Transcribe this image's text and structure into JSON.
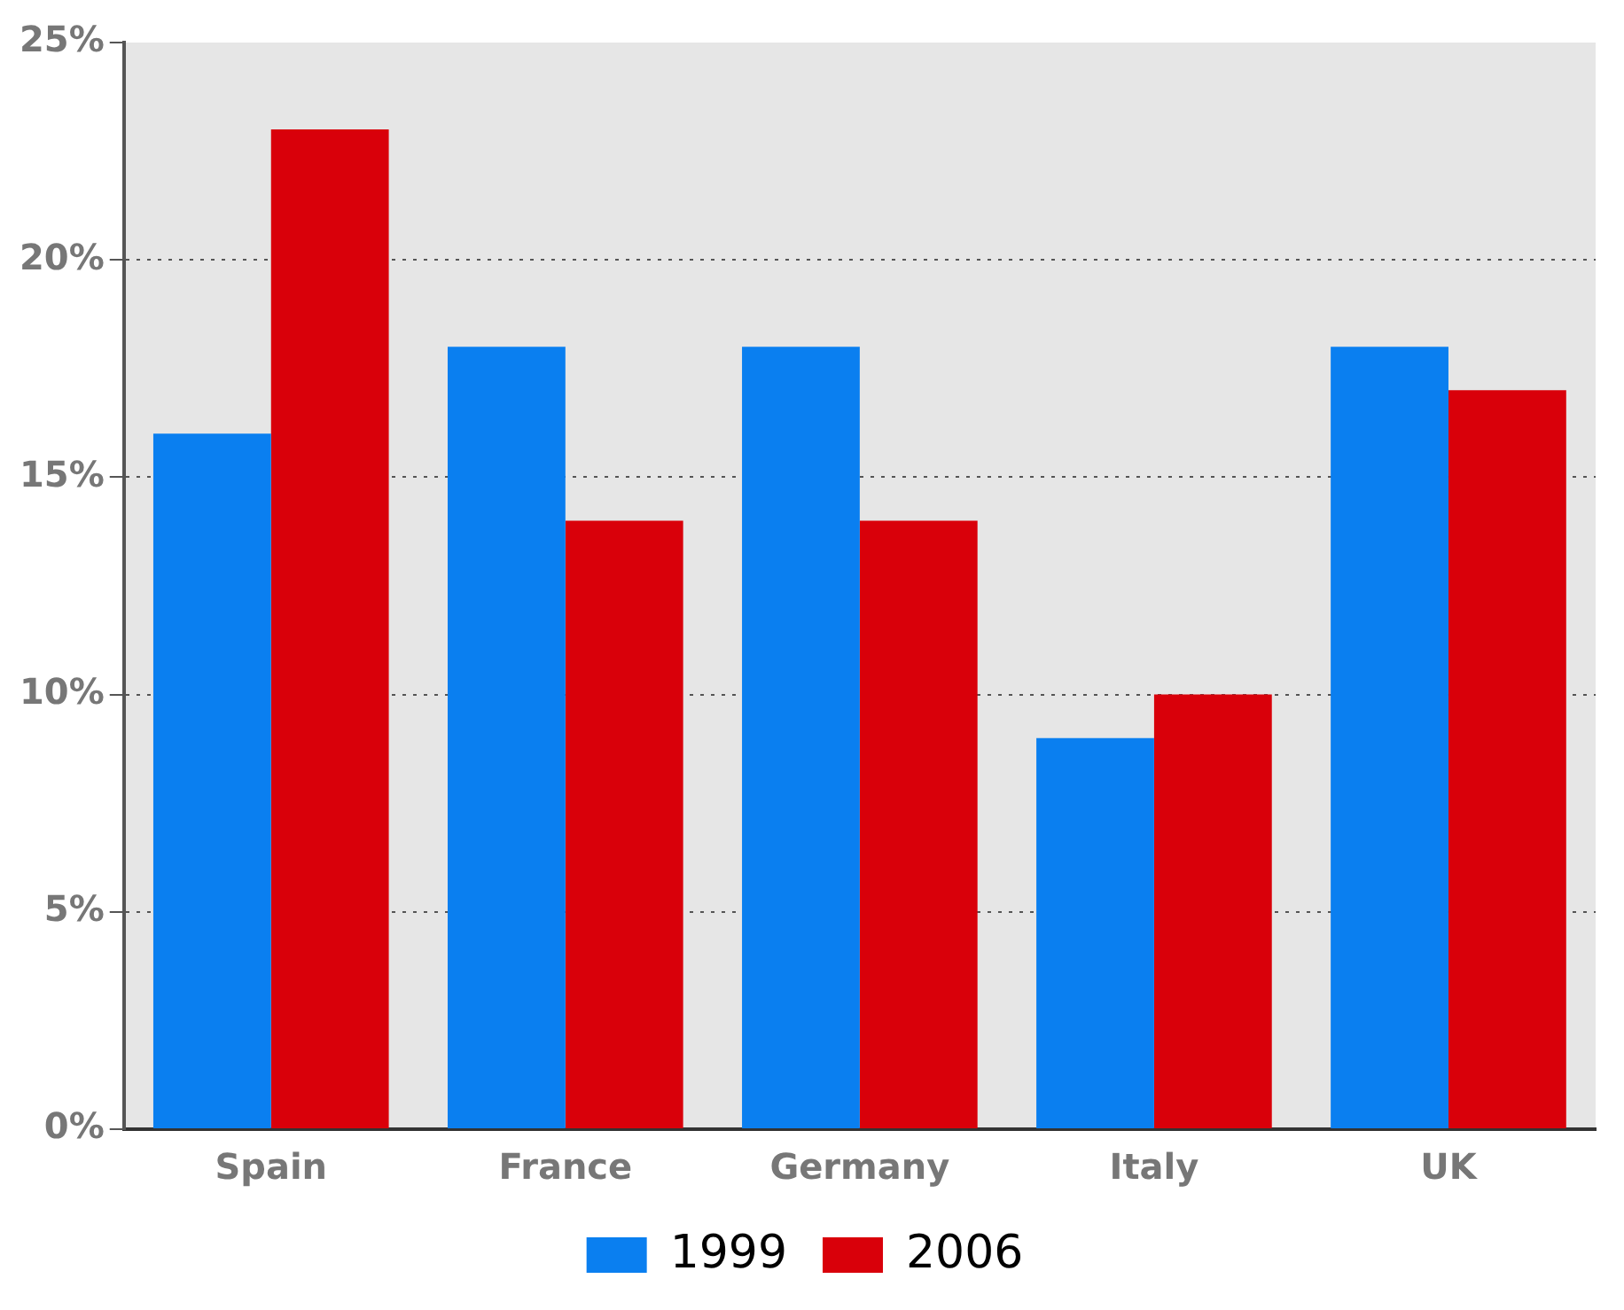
{
  "chart_data": {
    "type": "bar",
    "categories": [
      "Spain",
      "France",
      "Germany",
      "Italy",
      "UK"
    ],
    "series": [
      {
        "name": "1999",
        "color": "#0a7ff0",
        "values": [
          16,
          18,
          18,
          9,
          18
        ]
      },
      {
        "name": "2006",
        "color": "#d9000a",
        "values": [
          23,
          14,
          14,
          10,
          17
        ]
      }
    ],
    "ylim": [
      0,
      25
    ],
    "yticks": [
      {
        "value": 0,
        "label": "0%"
      },
      {
        "value": 5,
        "label": "5%"
      },
      {
        "value": 10,
        "label": "10%"
      },
      {
        "value": 15,
        "label": "15%"
      },
      {
        "value": 20,
        "label": "20%"
      },
      {
        "value": 25,
        "label": "25%"
      }
    ],
    "grid": "y",
    "legend": "bottom"
  }
}
